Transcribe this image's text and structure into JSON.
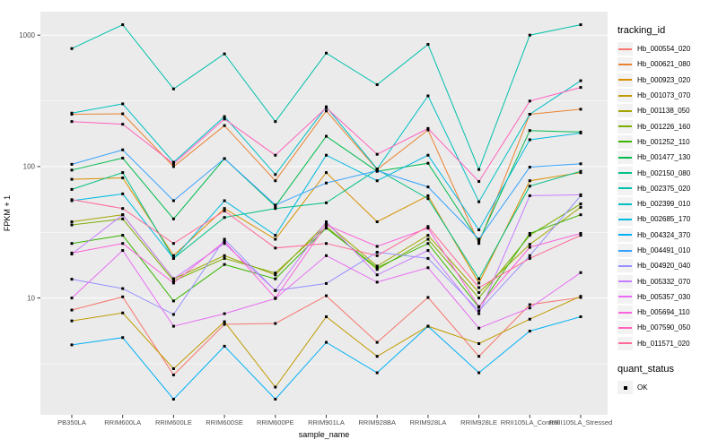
{
  "chart_data": {
    "type": "line",
    "title": "",
    "xlabel": "sample_name",
    "ylabel": "FPKM + 1",
    "y_scale": "log10",
    "yticks": [
      1000,
      100,
      10
    ],
    "ylim": [
      1.3,
      1500
    ],
    "grid": "on",
    "panel_bg": "#EBEBEB",
    "grid_color": "#FFFFFF",
    "point_color": "#000000",
    "legend_position": "right",
    "legend_title": "tracking_id",
    "quant_legend_title": "quant_status",
    "quant_legend_entry": "OK",
    "categories": [
      "PB350LA",
      "RRIM600LA",
      "RRIM600LE",
      "RRIM600SE",
      "RRIM600PE",
      "RRIM901LA",
      "RRIM928BA",
      "RRIM928LA",
      "RRIM928LE",
      "RRII105LA_Control",
      "RRII105LA_Stressed"
    ],
    "series": [
      {
        "name": "Hb_000554_020",
        "color": "#F8766D",
        "values": [
          8.1,
          10.2,
          2.6,
          6.3,
          6.4,
          10.4,
          4.6,
          10.1,
          3.6,
          8.9,
          10.1
        ]
      },
      {
        "name": "Hb_000621_080",
        "color": "#EA8331",
        "values": [
          250,
          252,
          100,
          205,
          78,
          265,
          95,
          190,
          26,
          250,
          273
        ]
      },
      {
        "name": "Hb_000923_020",
        "color": "#D89000",
        "values": [
          80,
          82,
          21,
          48,
          28,
          90,
          38,
          60,
          13,
          78,
          90
        ]
      },
      {
        "name": "Hb_001073_070",
        "color": "#C09B00",
        "values": [
          6.7,
          7.7,
          2.9,
          6.6,
          2.1,
          7.2,
          3.6,
          6.1,
          4.5,
          6.9,
          10.3
        ]
      },
      {
        "name": "Hb_001138_050",
        "color": "#A3A500",
        "values": [
          38,
          43,
          14,
          21,
          15,
          37,
          17.5,
          30,
          11,
          25.6,
          49
        ]
      },
      {
        "name": "Hb_001226_160",
        "color": "#7CAE00",
        "values": [
          36,
          40,
          13.5,
          20,
          15.5,
          35,
          16.5,
          28,
          10,
          30,
          52
        ]
      },
      {
        "name": "Hb_001252_110",
        "color": "#39B600",
        "values": [
          26,
          30,
          9.5,
          18,
          14,
          34,
          17,
          26,
          8.5,
          31,
          43
        ]
      },
      {
        "name": "Hb_001477_130",
        "color": "#00BB4E",
        "values": [
          94,
          116,
          40,
          115,
          50,
          170,
          92,
          106,
          27,
          188,
          183
        ]
      },
      {
        "name": "Hb_002150_080",
        "color": "#00C087",
        "values": [
          67,
          90,
          20,
          41,
          48,
          53,
          95,
          57,
          14,
          71,
          92
        ]
      },
      {
        "name": "Hb_002375_020",
        "color": "#00C1AB",
        "values": [
          790,
          1200,
          390,
          720,
          220,
          730,
          420,
          850,
          95,
          1000,
          1200
        ]
      },
      {
        "name": "Hb_002399_010",
        "color": "#00BFC4",
        "values": [
          255,
          300,
          108,
          240,
          87,
          285,
          96,
          345,
          54,
          250,
          450
        ]
      },
      {
        "name": "Hb_002685_170",
        "color": "#00BAE0",
        "values": [
          55,
          62,
          20,
          55,
          30,
          122,
          78,
          122,
          33,
          160,
          180
        ]
      },
      {
        "name": "Hb_004324_370",
        "color": "#00B0F6",
        "values": [
          4.4,
          5.0,
          1.7,
          4.3,
          1.7,
          4.6,
          2.7,
          6.1,
          2.7,
          5.6,
          7.2
        ]
      },
      {
        "name": "Hb_004491_010",
        "color": "#35A2FF",
        "values": [
          104,
          134,
          55,
          115,
          51,
          75,
          93,
          70,
          28,
          99,
          105
        ]
      },
      {
        "name": "Hb_004920_040",
        "color": "#9590FF",
        "values": [
          13.9,
          11.8,
          7.5,
          28,
          11.4,
          12.9,
          22.3,
          20,
          8,
          21,
          60
        ]
      },
      {
        "name": "Hb_005332_070",
        "color": "#C77CFF",
        "values": [
          21.6,
          43,
          14,
          26,
          11.4,
          38,
          15,
          23,
          7.6,
          60,
          61
        ]
      },
      {
        "name": "Hb_005357_030",
        "color": "#E76BF3",
        "values": [
          10,
          23,
          6.1,
          7.6,
          9.9,
          21,
          13.2,
          17,
          5.9,
          8.4,
          15.6
        ]
      },
      {
        "name": "Hb_005694_110",
        "color": "#FA62DB",
        "values": [
          22,
          26,
          13,
          27,
          10,
          36,
          24.7,
          34,
          8.6,
          24.3,
          31
        ]
      },
      {
        "name": "Hb_007590_050",
        "color": "#FF62BC",
        "values": [
          220,
          210,
          105,
          230,
          122,
          280,
          124,
          195,
          77,
          315,
          400
        ]
      },
      {
        "name": "Hb_011571_020",
        "color": "#FF6A98",
        "values": [
          56,
          48,
          26,
          46,
          24,
          26,
          21,
          35,
          12,
          20,
          30
        ]
      }
    ]
  }
}
